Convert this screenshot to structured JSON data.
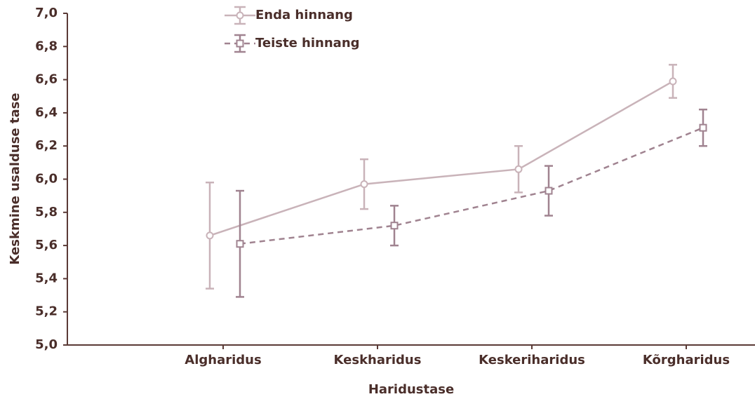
{
  "chart_data": {
    "type": "line",
    "xlabel": "Haridustase",
    "ylabel": "Keskmine usalduse tase",
    "categories": [
      "Algharidus",
      "Keskharidus",
      "Keskeriharidus",
      "Kõrgharidus"
    ],
    "series": [
      {
        "name": "Enda hinnang",
        "color": "#c9b3b9",
        "linestyle": "solid",
        "marker": "circle",
        "values": [
          5.66,
          5.97,
          6.06,
          6.59
        ],
        "errors": [
          0.32,
          0.15,
          0.14,
          0.1
        ]
      },
      {
        "name": "Teiste hinnang",
        "color": "#a08390",
        "linestyle": "dashed",
        "marker": "square",
        "values": [
          5.61,
          5.72,
          5.93,
          6.31
        ],
        "errors": [
          0.32,
          0.12,
          0.15,
          0.11
        ]
      }
    ],
    "ylim": [
      5.0,
      7.0
    ],
    "yticks": [
      {
        "value": 5.0,
        "label": "5,0"
      },
      {
        "value": 5.2,
        "label": "5,2"
      },
      {
        "value": 5.4,
        "label": "5,4"
      },
      {
        "value": 5.6,
        "label": "5,6"
      },
      {
        "value": 5.8,
        "label": "5,8"
      },
      {
        "value": 6.0,
        "label": "6,0"
      },
      {
        "value": 6.2,
        "label": "6,2"
      },
      {
        "value": 6.4,
        "label": "6,4"
      },
      {
        "value": 6.6,
        "label": "6,6"
      },
      {
        "value": 6.8,
        "label": "6,8"
      },
      {
        "value": 7.0,
        "label": "7,0"
      }
    ],
    "legend": "top"
  }
}
